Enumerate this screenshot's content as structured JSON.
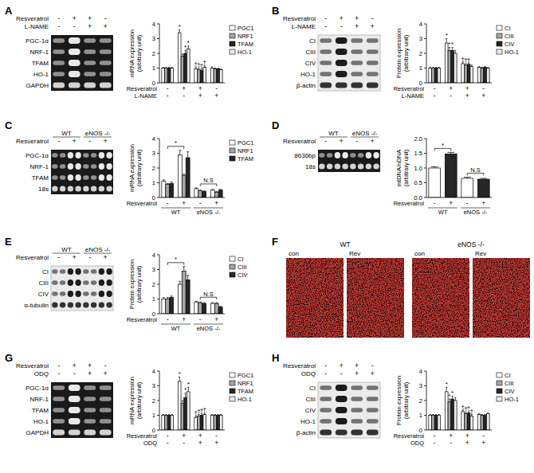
{
  "chart_data": [
    {
      "type": "bar",
      "y_label": [
        "mRNA expression",
        "(arbitrary unit)"
      ],
      "ylim": [
        0,
        4
      ],
      "yticks": [
        0,
        1,
        2,
        3,
        4
      ],
      "categories": [
        null,
        null,
        null,
        null
      ],
      "legend": "right",
      "treatments": [
        {
          "label": "Resveratrol",
          "values": [
            "-",
            "+",
            "+",
            "-"
          ]
        },
        {
          "label": "L-NAME",
          "values": [
            "-",
            "-",
            "+",
            "+"
          ]
        }
      ],
      "series": [
        {
          "name": "PGC1",
          "color": "#ffffff",
          "values": [
            1,
            3.4,
            0.95,
            1.0
          ],
          "errors": [
            0.05,
            0.2,
            0.1,
            0.08
          ]
        },
        {
          "name": "NRF1",
          "color": "#a6a6a6",
          "values": [
            1,
            1.8,
            0.9,
            0.95
          ],
          "errors": [
            0.05,
            0.15,
            0.1,
            0.05
          ]
        },
        {
          "name": "TFAM",
          "color": "#262626",
          "values": [
            1,
            2.0,
            0.85,
            0.95
          ],
          "errors": [
            0.05,
            0.2,
            0.1,
            0.05
          ]
        },
        {
          "name": "HO-1",
          "color": "#ececec",
          "values": [
            1,
            2.3,
            1.05,
            0.9
          ],
          "errors": [
            0.05,
            0.2,
            0.1,
            0.05
          ]
        }
      ],
      "annotations": [
        {
          "text": "*",
          "series": 0,
          "index": 1
        },
        {
          "text": "*",
          "series": 2,
          "index": 1
        },
        {
          "text": "*",
          "series": 3,
          "index": 1
        },
        {
          "text": "†",
          "series": 0,
          "index": 2
        },
        {
          "text": "†",
          "series": 1,
          "index": 2
        },
        {
          "text": "†",
          "series": 2,
          "index": 2
        },
        {
          "text": "†",
          "series": 3,
          "index": 2
        }
      ]
    },
    {
      "type": "bar",
      "y_label": [
        "Protein expression",
        "(arbitrary unit)"
      ],
      "ylim": [
        0,
        4
      ],
      "yticks": [
        0,
        1,
        2,
        3,
        4
      ],
      "categories": [
        null,
        null,
        null,
        null
      ],
      "legend": "right",
      "treatments": [
        {
          "label": "Resveratrol",
          "values": [
            "-",
            "+",
            "+",
            "-"
          ]
        },
        {
          "label": "L-NAME",
          "values": [
            "-",
            "-",
            "+",
            "+"
          ]
        }
      ],
      "series": [
        {
          "name": "CI",
          "color": "#ffffff",
          "values": [
            1,
            2.7,
            1.3,
            1.05
          ],
          "errors": [
            0.05,
            0.3,
            0.1,
            0.05
          ]
        },
        {
          "name": "CIII",
          "color": "#a6a6a6",
          "values": [
            1,
            2.2,
            1.2,
            1.0
          ],
          "errors": [
            0.05,
            0.2,
            0.1,
            0.05
          ]
        },
        {
          "name": "CIV",
          "color": "#262626",
          "values": [
            1,
            2.2,
            1.25,
            1.05
          ],
          "errors": [
            0.05,
            0.2,
            0.1,
            0.05
          ]
        },
        {
          "name": "HO-1",
          "color": "#ececec",
          "values": [
            1,
            2.0,
            1.1,
            1.0
          ],
          "errors": [
            0.05,
            0.2,
            0.1,
            0.05
          ]
        }
      ],
      "annotations": [
        {
          "text": "*",
          "series": 0,
          "index": 1
        },
        {
          "text": "*",
          "series": 1,
          "index": 1
        },
        {
          "text": "*",
          "series": 2,
          "index": 1
        },
        {
          "text": "†",
          "series": 0,
          "index": 2
        },
        {
          "text": "†",
          "series": 1,
          "index": 2
        },
        {
          "text": "†",
          "series": 2,
          "index": 2
        }
      ]
    },
    {
      "type": "bar",
      "y_label": [
        "mRNA expression",
        "(arbitrary unit)"
      ],
      "ylim": [
        0,
        4
      ],
      "yticks": [
        0,
        1,
        2,
        3,
        4
      ],
      "categories": [
        null,
        null,
        null,
        null
      ],
      "legend": "right",
      "treatments": [
        {
          "label": "Resveratrol",
          "values": [
            "-",
            "+",
            "-",
            "+"
          ]
        }
      ],
      "groups": [
        {
          "label": "WT",
          "from": 0,
          "to": 1
        },
        {
          "label": "eNOS -/-",
          "from": 2,
          "to": 3
        }
      ],
      "series": [
        {
          "name": "PGC1",
          "color": "#ffffff",
          "values": [
            1.1,
            2.9,
            0.6,
            0.5
          ],
          "errors": [
            0.1,
            0.3,
            0.05,
            0.05
          ]
        },
        {
          "name": "NRF1",
          "color": "#a6a6a6",
          "values": [
            0.9,
            1.5,
            0.45,
            0.35
          ],
          "errors": [
            0.05,
            0.1,
            0.05,
            0.05
          ]
        },
        {
          "name": "TFAM",
          "color": "#262626",
          "values": [
            0.95,
            2.7,
            0.4,
            0.5
          ],
          "errors": [
            0.1,
            0.4,
            0.05,
            0.05
          ]
        }
      ],
      "brackets": [
        {
          "text": "*",
          "from": 0,
          "to": 1
        },
        {
          "text": "N.S",
          "from": 2,
          "to": 3
        }
      ]
    },
    {
      "type": "bar",
      "y_label": [
        "mtDNA/nDNA",
        "(arbitrary unit)"
      ],
      "ylim": [
        0,
        2
      ],
      "yticks": [
        {
          "value": 0,
          "label": "0.0"
        },
        {
          "value": 0.5,
          "label": "0.5"
        },
        {
          "value": 1,
          "label": "1.0"
        },
        {
          "value": 1.5,
          "label": "1.5"
        },
        {
          "value": 2,
          "label": "2.0"
        }
      ],
      "categories": [
        null,
        null,
        null,
        null
      ],
      "treatments": [
        {
          "label": "Resveratrol",
          "values": [
            "-",
            "+",
            "-",
            "+"
          ]
        }
      ],
      "groups": [
        {
          "label": "WT",
          "from": 0,
          "to": 1
        },
        {
          "label": "eNOS -/-",
          "from": 2,
          "to": 3
        }
      ],
      "values": [
        1.0,
        1.48,
        0.65,
        0.62
      ],
      "errors": [
        0.04,
        0.05,
        0.04,
        0.03
      ],
      "colors": [
        "#ffffff",
        "#262626",
        "#ffffff",
        "#262626"
      ],
      "brackets": [
        {
          "text": "*",
          "from": 0,
          "to": 1
        },
        {
          "text": "N.S",
          "from": 2,
          "to": 3
        }
      ]
    },
    {
      "type": "bar",
      "y_label": [
        "Protein expression",
        "(arbitrary unit)"
      ],
      "ylim": [
        0,
        4
      ],
      "yticks": [
        0,
        1,
        2,
        3,
        4
      ],
      "categories": [
        null,
        null,
        null,
        null
      ],
      "legend": "right",
      "treatments": [
        {
          "label": "Resveratrol",
          "values": [
            "-",
            "+",
            "-",
            "+"
          ]
        }
      ],
      "groups": [
        {
          "label": "WT",
          "from": 0,
          "to": 1
        },
        {
          "label": "eNOS -/-",
          "from": 2,
          "to": 3
        }
      ],
      "series": [
        {
          "name": "CI",
          "color": "#ffffff",
          "values": [
            1.0,
            2.0,
            0.8,
            0.7
          ],
          "errors": [
            0.1,
            0.2,
            0.05,
            0.05
          ]
        },
        {
          "name": "CIII",
          "color": "#a6a6a6",
          "values": [
            1.0,
            2.9,
            0.75,
            0.7
          ],
          "errors": [
            0.1,
            0.3,
            0.05,
            0.05
          ]
        },
        {
          "name": "CIV",
          "color": "#262626",
          "values": [
            1.1,
            2.3,
            0.7,
            0.45
          ],
          "errors": [
            0.1,
            0.3,
            0.05,
            0.05
          ]
        }
      ],
      "brackets": [
        {
          "text": "*",
          "from": 0,
          "to": 1
        },
        {
          "text": "N.S",
          "from": 2,
          "to": 3
        }
      ]
    },
    {
      "type": "bar",
      "y_label": [
        "mRNA expression",
        "(arbitrary unit)"
      ],
      "ylim": [
        0,
        4
      ],
      "yticks": [
        0,
        1,
        2,
        3,
        4
      ],
      "categories": [
        null,
        null,
        null,
        null
      ],
      "legend": "right",
      "treatments": [
        {
          "label": "Resveratrol",
          "values": [
            "-",
            "+",
            "+",
            "-"
          ]
        },
        {
          "label": "ODQ",
          "values": [
            "-",
            "-",
            "+",
            "+"
          ]
        }
      ],
      "series": [
        {
          "name": "PGC1",
          "color": "#ffffff",
          "values": [
            1,
            3.3,
            0.85,
            1.0
          ],
          "errors": [
            0.05,
            0.3,
            0.1,
            0.05
          ]
        },
        {
          "name": "NRF1",
          "color": "#a6a6a6",
          "values": [
            1,
            1.8,
            0.95,
            1.0
          ],
          "errors": [
            0.05,
            0.2,
            0.1,
            0.05
          ]
        },
        {
          "name": "TFAM",
          "color": "#262626",
          "values": [
            1,
            2.2,
            1.0,
            1.0
          ],
          "errors": [
            0.05,
            0.3,
            0.1,
            0.05
          ]
        },
        {
          "name": "HO-1",
          "color": "#ececec",
          "values": [
            1,
            2.6,
            1.05,
            1.0
          ],
          "errors": [
            0.05,
            0.3,
            0.1,
            0.05
          ]
        }
      ],
      "annotations": [
        {
          "text": "*",
          "series": 0,
          "index": 1
        },
        {
          "text": "*",
          "series": 2,
          "index": 1
        },
        {
          "text": "*",
          "series": 3,
          "index": 1
        },
        {
          "text": "†",
          "series": 0,
          "index": 2
        },
        {
          "text": "†",
          "series": 1,
          "index": 2
        },
        {
          "text": "†",
          "series": 2,
          "index": 2
        },
        {
          "text": "†",
          "series": 3,
          "index": 2
        }
      ]
    },
    {
      "type": "bar",
      "y_label": [
        "Protein expression",
        "(arbitrary unit)"
      ],
      "ylim": [
        0,
        4
      ],
      "yticks": [
        0,
        1,
        2,
        3,
        4
      ],
      "categories": [
        null,
        null,
        null,
        null
      ],
      "legend": "right",
      "treatments": [
        {
          "label": "Resveratrol",
          "values": [
            "-",
            "+",
            "+",
            "-"
          ]
        },
        {
          "label": "ODQ",
          "values": [
            "-",
            "-",
            "+",
            "+"
          ]
        }
      ],
      "series": [
        {
          "name": "CI",
          "color": "#ffffff",
          "values": [
            1,
            2.6,
            1.25,
            1.05
          ],
          "errors": [
            0.05,
            0.3,
            0.1,
            0.05
          ]
        },
        {
          "name": "CIII",
          "color": "#a6a6a6",
          "values": [
            1,
            1.9,
            1.1,
            1.0
          ],
          "errors": [
            0.05,
            0.2,
            0.1,
            0.05
          ]
        },
        {
          "name": "CIV",
          "color": "#262626",
          "values": [
            1,
            2.1,
            1.15,
            1.0
          ],
          "errors": [
            0.05,
            0.2,
            0.1,
            0.05
          ]
        },
        {
          "name": "HO-1",
          "color": "#ececec",
          "values": [
            1,
            2.0,
            0.95,
            1.1
          ],
          "errors": [
            0.05,
            0.2,
            0.1,
            0.05
          ]
        }
      ],
      "annotations": [
        {
          "text": "*",
          "series": 0,
          "index": 1
        },
        {
          "text": "*",
          "series": 1,
          "index": 1
        },
        {
          "text": "*",
          "series": 2,
          "index": 1
        },
        {
          "text": "†",
          "series": 0,
          "index": 2
        },
        {
          "text": "†",
          "series": 1,
          "index": 2
        },
        {
          "text": "†",
          "series": 2,
          "index": 2
        },
        {
          "text": "†",
          "series": 3,
          "index": 2
        }
      ]
    }
  ],
  "blots": [
    {
      "letter": "A",
      "kind": "gel",
      "treatments": [
        {
          "label": "Resveratrol",
          "values": [
            "-",
            "+",
            "+",
            "-"
          ]
        },
        {
          "label": "L-NAME",
          "values": [
            "-",
            "-",
            "+",
            "+"
          ]
        }
      ],
      "bands": [
        "PGC-1α",
        "NRF-1",
        "TFAM",
        "HO-1",
        "GAPDH"
      ]
    },
    {
      "letter": "B",
      "kind": "western",
      "treatments": [
        {
          "label": "Resveratrol",
          "values": [
            "-",
            "+",
            "+",
            "-"
          ]
        },
        {
          "label": "L-NAME",
          "values": [
            "-",
            "-",
            "+",
            "+"
          ]
        }
      ],
      "bands": [
        "CI",
        "CIII",
        "CIV",
        "HO-1",
        "β-actin"
      ]
    },
    {
      "letter": "C",
      "kind": "gel",
      "groups": [
        {
          "label": "WT",
          "from": 0,
          "to": 1
        },
        {
          "label": "eNOS -/-",
          "from": 2,
          "to": 3
        }
      ],
      "treatments": [
        {
          "label": "Resveratrol",
          "values": [
            "-",
            "+",
            "-",
            "+"
          ]
        }
      ],
      "bands": [
        "PGC-1α",
        "NRF-1",
        "TFAM",
        "18s"
      ]
    },
    {
      "letter": "D",
      "kind": "gel",
      "groups": [
        {
          "label": "WT",
          "from": 0,
          "to": 1
        },
        {
          "label": "eNOS -/-",
          "from": 2,
          "to": 3
        }
      ],
      "treatments": [
        {
          "label": "Resveratrol",
          "values": [
            "-",
            "+",
            "-",
            "+"
          ]
        }
      ],
      "bands": [
        "8636bp",
        "18s"
      ]
    },
    {
      "letter": "E",
      "kind": "western",
      "groups": [
        {
          "label": "WT",
          "from": 0,
          "to": 1
        },
        {
          "label": "eNOS -/-",
          "from": 2,
          "to": 3
        }
      ],
      "treatments": [
        {
          "label": "Resveratrol",
          "values": [
            "-",
            "+",
            "-",
            "+"
          ]
        }
      ],
      "bands": [
        "CI",
        "CIII",
        "CIV",
        "α-tubulin"
      ]
    },
    {
      "letter": "G",
      "kind": "gel",
      "treatments": [
        {
          "label": "Resveratrol",
          "values": [
            "-",
            "+",
            "+",
            "-"
          ]
        },
        {
          "label": "ODQ",
          "values": [
            "-",
            "-",
            "+",
            "+"
          ]
        }
      ],
      "bands": [
        "PGC-1α",
        "NRF-1",
        "TFAM",
        "HO-1",
        "GAPDH"
      ]
    },
    {
      "letter": "H",
      "kind": "western",
      "treatments": [
        {
          "label": "Resveratrol",
          "values": [
            "-",
            "+",
            "+",
            "-"
          ]
        },
        {
          "label": "ODQ",
          "values": [
            "-",
            "-",
            "+",
            "+"
          ]
        }
      ],
      "bands": [
        "CI",
        "CIII",
        "CIV",
        "HO-1",
        "β-actin"
      ]
    }
  ],
  "image_panel": {
    "letter": "F",
    "groups": [
      {
        "label": "WT",
        "conditions": [
          "con",
          "Rev"
        ]
      },
      {
        "label": "eNOS -/-",
        "conditions": [
          "con",
          "Rev"
        ]
      }
    ]
  }
}
